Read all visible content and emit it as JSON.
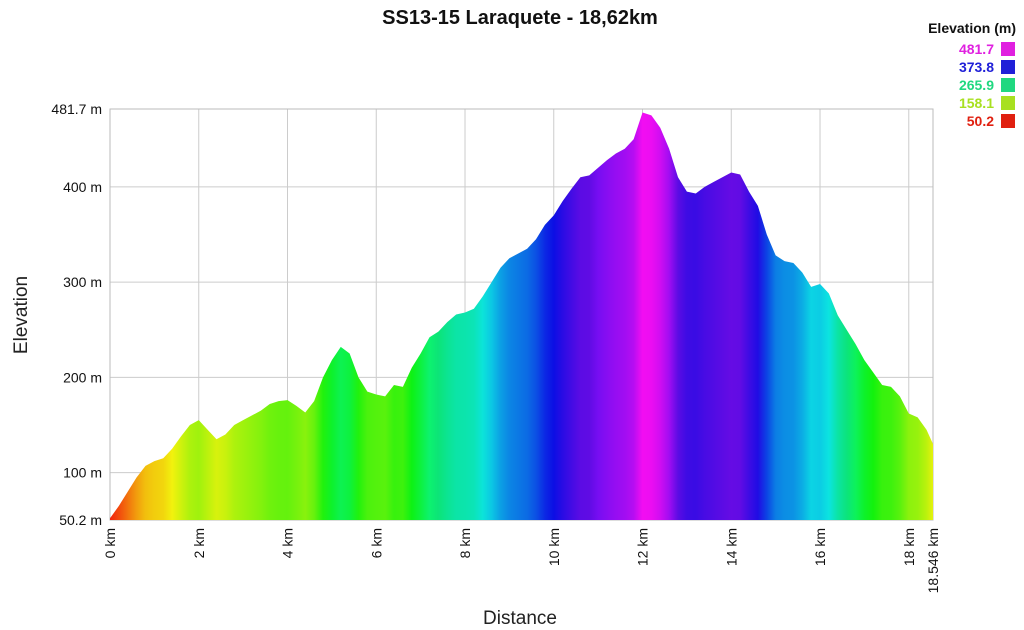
{
  "chart_data": {
    "type": "area",
    "title": "SS13-15 Laraquete - 18,62km",
    "xlabel": "Distance",
    "ylabel": "Elevation",
    "xlim": [
      0,
      18.546
    ],
    "ylim": [
      50.2,
      481.7
    ],
    "x_ticks": [
      {
        "value": 0,
        "label": "0 km"
      },
      {
        "value": 2,
        "label": "2 km"
      },
      {
        "value": 4,
        "label": "4 km"
      },
      {
        "value": 6,
        "label": "6 km"
      },
      {
        "value": 8,
        "label": "8 km"
      },
      {
        "value": 10,
        "label": "10 km"
      },
      {
        "value": 12,
        "label": "12 km"
      },
      {
        "value": 14,
        "label": "14 km"
      },
      {
        "value": 16,
        "label": "16 km"
      },
      {
        "value": 18,
        "label": "18 km"
      },
      {
        "value": 18.546,
        "label": "18.546 km"
      }
    ],
    "y_ticks": [
      {
        "value": 50.2,
        "label": "50.2 m"
      },
      {
        "value": 100,
        "label": "100 m"
      },
      {
        "value": 200,
        "label": "200 m"
      },
      {
        "value": 300,
        "label": "300 m"
      },
      {
        "value": 400,
        "label": "400 m"
      },
      {
        "value": 481.7,
        "label": "481.7 m"
      }
    ],
    "grid": true,
    "legend": {
      "title": "Elevation (m)",
      "placement": "top-right",
      "entries": [
        {
          "label": "481.7",
          "color": "#e020e0"
        },
        {
          "label": "373.8",
          "color": "#2020d8"
        },
        {
          "label": "265.9",
          "color": "#20d880"
        },
        {
          "label": "158.1",
          "color": "#a8e020"
        },
        {
          "label": "50.2",
          "color": "#e02010"
        }
      ]
    },
    "series": [
      {
        "x": [
          0,
          0.2,
          0.4,
          0.6,
          0.8,
          1.0,
          1.2,
          1.4,
          1.6,
          1.8,
          2.0,
          2.2,
          2.4,
          2.6,
          2.8,
          3.0,
          3.2,
          3.4,
          3.6,
          3.8,
          4.0,
          4.2,
          4.4,
          4.6,
          4.8,
          5.0,
          5.2,
          5.4,
          5.6,
          5.8,
          6.0,
          6.2,
          6.4,
          6.6,
          6.8,
          7.0,
          7.2,
          7.4,
          7.6,
          7.8,
          8.0,
          8.2,
          8.4,
          8.6,
          8.8,
          9.0,
          9.2,
          9.4,
          9.6,
          9.8,
          10.0,
          10.2,
          10.4,
          10.6,
          10.8,
          11.0,
          11.2,
          11.4,
          11.6,
          11.8,
          12.0,
          12.2,
          12.4,
          12.6,
          12.8,
          13.0,
          13.2,
          13.4,
          13.6,
          13.8,
          14.0,
          14.2,
          14.4,
          14.6,
          14.8,
          15.0,
          15.2,
          15.4,
          15.6,
          15.8,
          16.0,
          16.2,
          16.4,
          16.6,
          16.8,
          17.0,
          17.2,
          17.4,
          17.6,
          17.8,
          18.0,
          18.2,
          18.4,
          18.546
        ],
        "y": [
          52,
          65,
          80,
          95,
          107,
          112,
          115,
          125,
          138,
          150,
          155,
          145,
          135,
          140,
          150,
          155,
          160,
          165,
          172,
          175,
          176,
          170,
          163,
          175,
          200,
          218,
          232,
          225,
          200,
          185,
          182,
          180,
          192,
          190,
          210,
          225,
          242,
          248,
          258,
          266,
          268,
          272,
          285,
          300,
          315,
          325,
          330,
          335,
          345,
          360,
          370,
          385,
          398,
          410,
          412,
          420,
          428,
          435,
          440,
          450,
          478,
          475,
          462,
          440,
          410,
          395,
          393,
          400,
          405,
          410,
          415,
          413,
          395,
          380,
          350,
          328,
          322,
          320,
          310,
          295,
          298,
          288,
          265,
          250,
          235,
          218,
          205,
          192,
          190,
          180,
          162,
          158,
          145,
          130
        ]
      }
    ]
  }
}
